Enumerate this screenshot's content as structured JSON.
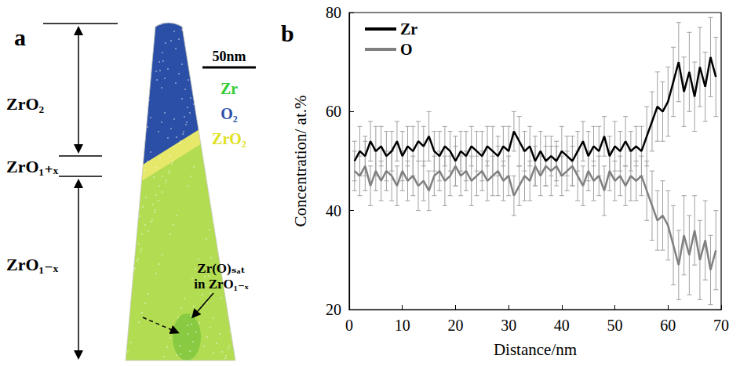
{
  "diagram": {
    "letter": "a",
    "regions": [
      {
        "label": "ZrO₂",
        "color": "#2b4fa6"
      },
      {
        "label": "ZrO₁₊ₓ",
        "color": "#e6e86a"
      },
      {
        "label": "ZrO₁₋ₓ",
        "color": "#b2dc52"
      }
    ],
    "scale_bar": "50nm",
    "legend": [
      {
        "label": "Zr",
        "color": "#33cc33"
      },
      {
        "label": "O₂",
        "color": "#2b4fa6"
      },
      {
        "label": "ZrO₂",
        "color": "#e0e020"
      }
    ],
    "annotation": "Zr(O)ₛₐₜ in ZrO₁₋ₓ"
  },
  "chart_data": {
    "type": "line",
    "panel": "b",
    "x_label": "Distance/nm",
    "y_label": "Concentration/ at.%",
    "x": [
      1,
      2,
      3,
      4,
      5,
      6,
      7,
      8,
      9,
      10,
      11,
      12,
      13,
      14,
      15,
      16,
      17,
      18,
      19,
      20,
      21,
      22,
      23,
      24,
      25,
      26,
      27,
      28,
      29,
      30,
      31,
      32,
      33,
      34,
      35,
      36,
      37,
      38,
      39,
      40,
      41,
      42,
      43,
      44,
      45,
      46,
      47,
      48,
      49,
      50,
      51,
      52,
      53,
      54,
      55,
      56,
      57,
      58,
      59,
      60,
      61,
      62,
      63,
      64,
      65,
      66,
      67,
      68,
      69
    ],
    "series": [
      {
        "name": "Zr",
        "color": "#000000",
        "values": [
          50,
          52,
          51,
          54,
          52,
          53,
          51,
          52,
          54,
          51,
          53,
          52,
          54,
          53,
          55,
          52,
          51,
          53,
          52,
          50,
          52,
          51,
          53,
          52,
          51,
          53,
          52,
          51,
          53,
          52,
          56,
          54,
          52,
          53,
          50,
          52,
          50,
          51,
          50,
          52,
          51,
          50,
          52,
          54,
          51,
          53,
          52,
          55,
          51,
          53,
          52,
          54,
          52,
          53,
          52,
          55,
          58,
          61,
          60,
          62,
          66,
          70,
          64,
          68,
          63,
          69,
          65,
          71,
          67
        ],
        "errors": [
          4,
          5,
          4,
          4,
          5,
          4,
          5,
          4,
          4,
          5,
          4,
          5,
          4,
          4,
          5,
          4,
          5,
          4,
          4,
          5,
          4,
          5,
          4,
          4,
          5,
          4,
          5,
          4,
          4,
          5,
          4,
          5,
          4,
          4,
          5,
          4,
          5,
          4,
          4,
          5,
          4,
          5,
          4,
          4,
          5,
          4,
          5,
          4,
          4,
          5,
          4,
          5,
          4,
          4,
          5,
          6,
          6,
          7,
          6,
          7,
          7,
          8,
          7,
          8,
          7,
          8,
          7,
          8,
          8
        ]
      },
      {
        "name": "O",
        "color": "#808080",
        "values": [
          48,
          47,
          49,
          45,
          48,
          46,
          48,
          47,
          45,
          48,
          46,
          47,
          45,
          46,
          44,
          47,
          48,
          46,
          47,
          49,
          47,
          48,
          46,
          47,
          48,
          46,
          47,
          48,
          46,
          47,
          43,
          45,
          47,
          46,
          49,
          47,
          49,
          48,
          49,
          47,
          48,
          49,
          47,
          45,
          48,
          46,
          47,
          44,
          48,
          46,
          47,
          45,
          47,
          46,
          47,
          44,
          41,
          38,
          39,
          37,
          33,
          29,
          35,
          31,
          36,
          30,
          34,
          28,
          32
        ],
        "errors": [
          4,
          4,
          5,
          4,
          4,
          4,
          4,
          5,
          4,
          4,
          4,
          4,
          5,
          4,
          4,
          4,
          4,
          5,
          4,
          4,
          4,
          4,
          5,
          4,
          4,
          4,
          4,
          5,
          4,
          4,
          4,
          4,
          5,
          4,
          4,
          4,
          4,
          5,
          4,
          4,
          4,
          4,
          5,
          4,
          4,
          4,
          4,
          5,
          4,
          4,
          4,
          4,
          5,
          4,
          4,
          6,
          7,
          6,
          7,
          7,
          8,
          7,
          8,
          8,
          7,
          8,
          8,
          7,
          8
        ]
      }
    ],
    "xlim": [
      0,
      70
    ],
    "xticks": [
      0,
      10,
      20,
      30,
      40,
      50,
      60,
      70
    ],
    "ylim": [
      20,
      80
    ],
    "yticks": [
      20,
      40,
      60,
      80
    ],
    "legend": "top-left",
    "grid": false
  }
}
